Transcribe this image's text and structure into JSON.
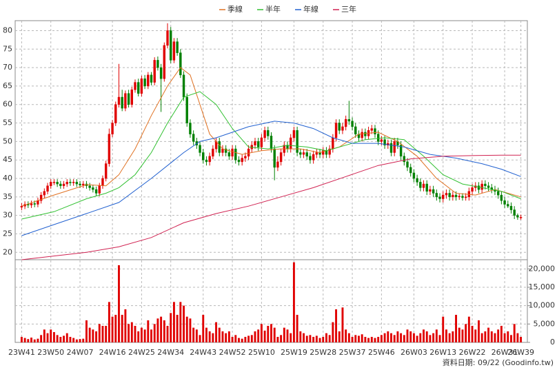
{
  "chart_data": {
    "type": "candlestick",
    "note": "資料日期: 09/22 (Goodinfo.tw)",
    "grid": true,
    "up_color": "#e00000",
    "down_color": "#008000",
    "xlim": [
      -2,
      156
    ],
    "xticks": [
      {
        "value": 0,
        "label": "23W41"
      },
      {
        "value": 9,
        "label": "23W50"
      },
      {
        "value": 18,
        "label": "24W07"
      },
      {
        "value": 28,
        "label": "24W16"
      },
      {
        "value": 37,
        "label": "24W25"
      },
      {
        "value": 46,
        "label": "24W34"
      },
      {
        "value": 56,
        "label": "24W43"
      },
      {
        "value": 65,
        "label": "24W52"
      },
      {
        "value": 74,
        "label": "25W10"
      },
      {
        "value": 84,
        "label": "25W19"
      },
      {
        "value": 93,
        "label": "25W28"
      },
      {
        "value": 102,
        "label": "25W37"
      },
      {
        "value": 111,
        "label": "25W46"
      },
      {
        "value": 121,
        "label": "26W03"
      },
      {
        "value": 130,
        "label": "26W13"
      },
      {
        "value": 139,
        "label": "26W22"
      },
      {
        "value": 149,
        "label": "26W31"
      },
      {
        "value": 154,
        "label": "26W39"
      }
    ],
    "ylim": [
      18,
      82.7
    ],
    "yticks": [
      20,
      25,
      30,
      35,
      40,
      45,
      50,
      55,
      60,
      65,
      70,
      75,
      80
    ],
    "open": [
      32.2,
      32.5,
      33,
      32.8,
      33.2,
      33,
      34,
      35.5,
      36.5,
      38,
      39,
      39,
      38.5,
      38,
      38.5,
      39,
      38.8,
      39,
      38.5,
      38.2,
      38.5,
      38,
      37.5,
      37,
      36,
      38,
      40,
      44,
      52,
      55,
      60,
      62,
      59,
      63,
      60,
      64,
      66,
      63,
      67,
      65,
      68,
      66,
      72,
      70,
      67,
      76,
      80,
      72,
      77,
      74,
      68,
      62,
      55,
      52,
      50,
      49,
      47,
      45,
      44.5,
      46,
      48,
      50,
      47,
      48,
      47,
      46,
      48,
      45,
      44.5,
      45.5,
      46,
      48,
      49,
      50,
      48.5,
      51,
      53,
      51.5,
      48,
      43,
      44.5,
      47,
      49,
      48,
      51,
      53,
      47,
      46.5,
      47,
      46,
      45,
      46.5,
      47,
      46.5,
      47.5,
      46.5,
      48,
      51,
      55,
      53,
      54,
      56,
      55.5,
      54,
      52,
      51,
      52.5,
      51.5,
      53,
      53.5,
      52,
      50,
      50.5,
      49,
      49.5,
      47,
      50,
      49,
      46,
      44.5,
      43,
      41.5,
      40,
      39,
      37.5,
      38.5,
      36.5,
      37,
      36,
      35,
      34.5,
      35.5,
      36,
      35,
      35.5,
      35,
      35.2,
      34.8,
      35,
      36.5,
      37.5,
      38,
      37,
      38.5,
      38,
      37.5,
      37,
      36.5,
      35.5,
      34,
      33,
      32.5,
      31.5,
      30,
      29.5
    ],
    "high": [
      33.3,
      33.8,
      33.8,
      34,
      34,
      34.8,
      36.3,
      37.3,
      38.8,
      39.8,
      39.8,
      39.8,
      39.3,
      39.3,
      39.8,
      39.8,
      39.8,
      39.8,
      39.3,
      39.3,
      39.3,
      38.8,
      38.3,
      37.8,
      38.8,
      40.8,
      44.8,
      53.5,
      55.8,
      60.8,
      71,
      64,
      63.8,
      64,
      64.8,
      66.8,
      67,
      67.8,
      68,
      68.8,
      68.8,
      72.8,
      73,
      71,
      76.8,
      82,
      81,
      78,
      78,
      75,
      69,
      63,
      56,
      53,
      51,
      50,
      48,
      46,
      47,
      49,
      51,
      51,
      49,
      49,
      48,
      49,
      49,
      46,
      46.5,
      47,
      49,
      50,
      51,
      51,
      52,
      54,
      54,
      52.5,
      49,
      46,
      48,
      50,
      50,
      52,
      54,
      54,
      48,
      48,
      48,
      47,
      47.5,
      48,
      48,
      48.5,
      48.5,
      49,
      52,
      56,
      56,
      55,
      57,
      61,
      56.5,
      55,
      53,
      53.5,
      53.5,
      54,
      54.5,
      54.5,
      53,
      51.5,
      51.5,
      50.5,
      50.5,
      51,
      51,
      50,
      47,
      45.5,
      44,
      42.5,
      41,
      40,
      39.5,
      39.5,
      38,
      38,
      37,
      36,
      36.5,
      37,
      37,
      36.5,
      36.5,
      36,
      36,
      36,
      37.5,
      38.5,
      39,
      39,
      39.5,
      39.5,
      39,
      38.5,
      38,
      37.5,
      36.5,
      35,
      34,
      33.5,
      32.5,
      30.5,
      30.2
    ],
    "low": [
      31.4,
      31.7,
      32,
      32,
      32.2,
      32.2,
      33.2,
      34.7,
      35.7,
      37.2,
      38.2,
      37.7,
      37.2,
      37.2,
      37.7,
      38,
      38,
      37.7,
      37.4,
      37.4,
      37.2,
      36.7,
      36.2,
      35.2,
      35.2,
      37.2,
      39.2,
      43.2,
      51.2,
      54.2,
      59.2,
      58.2,
      58.2,
      59.2,
      59.2,
      63.2,
      62.2,
      62.2,
      64.2,
      64.2,
      65.2,
      65.2,
      69.2,
      58,
      66.2,
      75.2,
      71.2,
      71.2,
      73.2,
      67.2,
      61,
      54,
      51,
      49,
      48,
      46,
      44,
      43.5,
      43.5,
      45.2,
      47,
      46,
      46,
      46,
      45,
      45,
      44,
      43.5,
      43.5,
      44.5,
      45,
      47,
      48,
      47.5,
      47.5,
      50,
      50.5,
      47,
      39.5,
      42,
      43.5,
      46,
      47,
      47,
      50,
      46,
      45.5,
      45.5,
      45,
      44,
      44,
      45.5,
      45.5,
      45.5,
      45.5,
      45.5,
      47,
      50,
      52,
      52,
      53,
      54.5,
      53,
      51,
      50,
      50,
      50.5,
      50.5,
      52,
      51,
      49,
      49,
      48,
      48,
      46,
      46,
      48,
      45,
      43.5,
      42,
      40.5,
      39,
      38,
      36.5,
      36.5,
      35.5,
      35.5,
      35,
      34,
      33.5,
      33.5,
      34.5,
      34,
      34,
      34,
      34.2,
      34,
      34,
      34,
      35.5,
      36.5,
      36,
      36,
      37,
      36.5,
      36,
      35.5,
      34.5,
      33,
      32,
      32,
      30.5,
      29,
      28.8,
      28.8
    ],
    "close": [
      32.5,
      33,
      32.8,
      33.2,
      33,
      34,
      35.5,
      36.5,
      38,
      39,
      39,
      38.5,
      38,
      38.5,
      39,
      38.8,
      39,
      38.5,
      38.2,
      38.5,
      38,
      37.5,
      37,
      36,
      38,
      40,
      44,
      52,
      55,
      60,
      62,
      59,
      63,
      60,
      64,
      66,
      63,
      67,
      65,
      68,
      66,
      72,
      70,
      67,
      76,
      80,
      72,
      77,
      74,
      68,
      62,
      55,
      52,
      50,
      49,
      47,
      45,
      44.5,
      46,
      48,
      50,
      47,
      48,
      47,
      46,
      48,
      45,
      44.5,
      45.5,
      46,
      48,
      49,
      50,
      48.5,
      51,
      53,
      51.5,
      48,
      43,
      44.5,
      47,
      49,
      48,
      51,
      53,
      47,
      46.5,
      47,
      46,
      45,
      46.5,
      47,
      46.5,
      47.5,
      46.5,
      48,
      51,
      55,
      53,
      54,
      56,
      55.5,
      54,
      52,
      51,
      52.5,
      51.5,
      53,
      53.5,
      52,
      50,
      50.5,
      49,
      49.5,
      47,
      50,
      49,
      46,
      44.5,
      43,
      41.5,
      40,
      39,
      37.5,
      38.5,
      36.5,
      37,
      36,
      35,
      34.5,
      35.5,
      36,
      35,
      35.5,
      35,
      35.2,
      34.8,
      35,
      36.5,
      37.5,
      38,
      37,
      38.5,
      38,
      37.5,
      37,
      36.5,
      35.5,
      34,
      33,
      32.5,
      31.5,
      30,
      29.5,
      29.5
    ],
    "series": [
      {
        "name": "季線",
        "color": "#e07020",
        "x": [
          0,
          10,
          20,
          26,
          30,
          35,
          40,
          45,
          49,
          52,
          55,
          58,
          62,
          68,
          74,
          80,
          86,
          92,
          98,
          104,
          110,
          116,
          122,
          128,
          134,
          140,
          146,
          150,
          154
        ],
        "values": [
          32.5,
          35.5,
          38.3,
          38,
          41,
          48,
          57,
          65,
          70,
          68,
          60,
          52,
          48,
          46.5,
          47.5,
          48,
          48,
          47,
          48.5,
          52,
          52.5,
          50,
          46,
          40,
          36,
          35.5,
          37,
          36,
          35
        ]
      },
      {
        "name": "半年",
        "color": "#30c030",
        "x": [
          0,
          10,
          20,
          26,
          30,
          35,
          40,
          45,
          50,
          55,
          60,
          65,
          70,
          76,
          82,
          88,
          94,
          100,
          106,
          112,
          118,
          124,
          130,
          136,
          142,
          148,
          154
        ],
        "values": [
          29,
          31,
          34.5,
          36,
          37.5,
          41,
          47,
          55,
          62,
          63.5,
          60,
          53.5,
          48.5,
          48,
          49,
          48.5,
          47.5,
          49,
          50.5,
          51,
          50.5,
          46,
          41,
          38.5,
          37.5,
          36.5,
          34.5
        ]
      },
      {
        "name": "年線",
        "color": "#2060d0",
        "x": [
          0,
          10,
          20,
          30,
          40,
          50,
          55,
          60,
          70,
          78,
          84,
          90,
          96,
          102,
          110,
          118,
          126,
          134,
          142,
          148,
          154
        ],
        "values": [
          24.5,
          27.5,
          30.5,
          33.5,
          40,
          47,
          50,
          51,
          54,
          55.5,
          55,
          53.5,
          51,
          49.5,
          49.5,
          48.5,
          46.5,
          45.5,
          44,
          42.5,
          40.5
        ]
      },
      {
        "name": "三年",
        "color": "#d02050",
        "x": [
          0,
          10,
          20,
          30,
          40,
          50,
          60,
          70,
          80,
          90,
          100,
          110,
          120,
          130,
          140,
          148,
          154
        ],
        "values": [
          18,
          19,
          20,
          21.5,
          24,
          28,
          30.5,
          32.5,
          35,
          37.5,
          40.5,
          43.5,
          45.3,
          46,
          46.2,
          46.3,
          46.3
        ]
      }
    ],
    "volume": {
      "color": "#e00000",
      "ylim": [
        0,
        22500
      ],
      "yticks": [
        0,
        {
          "value": 5000,
          "label": "5,000"
        },
        {
          "value": 10000,
          "label": "10,000"
        },
        {
          "value": 15000,
          "label": "15,000"
        },
        {
          "value": 20000,
          "label": "20,000"
        }
      ],
      "values": [
        1500,
        1200,
        900,
        1300,
        800,
        1000,
        2000,
        3500,
        2500,
        3500,
        2800,
        2000,
        1500,
        1800,
        2500,
        1500,
        1200,
        800,
        900,
        1000,
        6000,
        4000,
        3500,
        3000,
        5000,
        4500,
        4500,
        11000,
        7000,
        7500,
        21000,
        7500,
        9000,
        5000,
        5500,
        4500,
        3000,
        4000,
        3500,
        6000,
        3500,
        5000,
        6500,
        7000,
        6000,
        4500,
        8000,
        11000,
        7500,
        11000,
        10000,
        7000,
        6500,
        4000,
        3500,
        2000,
        7500,
        4000,
        3000,
        2500,
        5500,
        4000,
        3000,
        2500,
        3000,
        1500,
        2000,
        1200,
        1000,
        1500,
        1800,
        2000,
        3000,
        3500,
        5000,
        3200,
        4500,
        5000,
        4000,
        1500,
        2000,
        4000,
        3500,
        2500,
        21800,
        7500,
        3000,
        2500,
        1800,
        2000,
        1500,
        1800,
        1200,
        1500,
        2500,
        2000,
        5500,
        9000,
        3000,
        9500,
        3500,
        2500,
        1500,
        2000,
        1800,
        2200,
        1500,
        1200,
        1500,
        1200,
        1500,
        2000,
        2500,
        3000,
        2500,
        2000,
        3000,
        2500,
        2000,
        3500,
        3000,
        2500,
        1800,
        2500,
        3500,
        3000,
        2000,
        2500,
        3500,
        2000,
        7000,
        3500,
        2500,
        3000,
        7500,
        4000,
        3500,
        5000,
        7000,
        4500,
        3500,
        6000,
        2500,
        3000,
        4000,
        3000,
        2500,
        3500,
        4500,
        2500,
        3000,
        2000,
        5000,
        2500,
        1500
      ]
    }
  }
}
